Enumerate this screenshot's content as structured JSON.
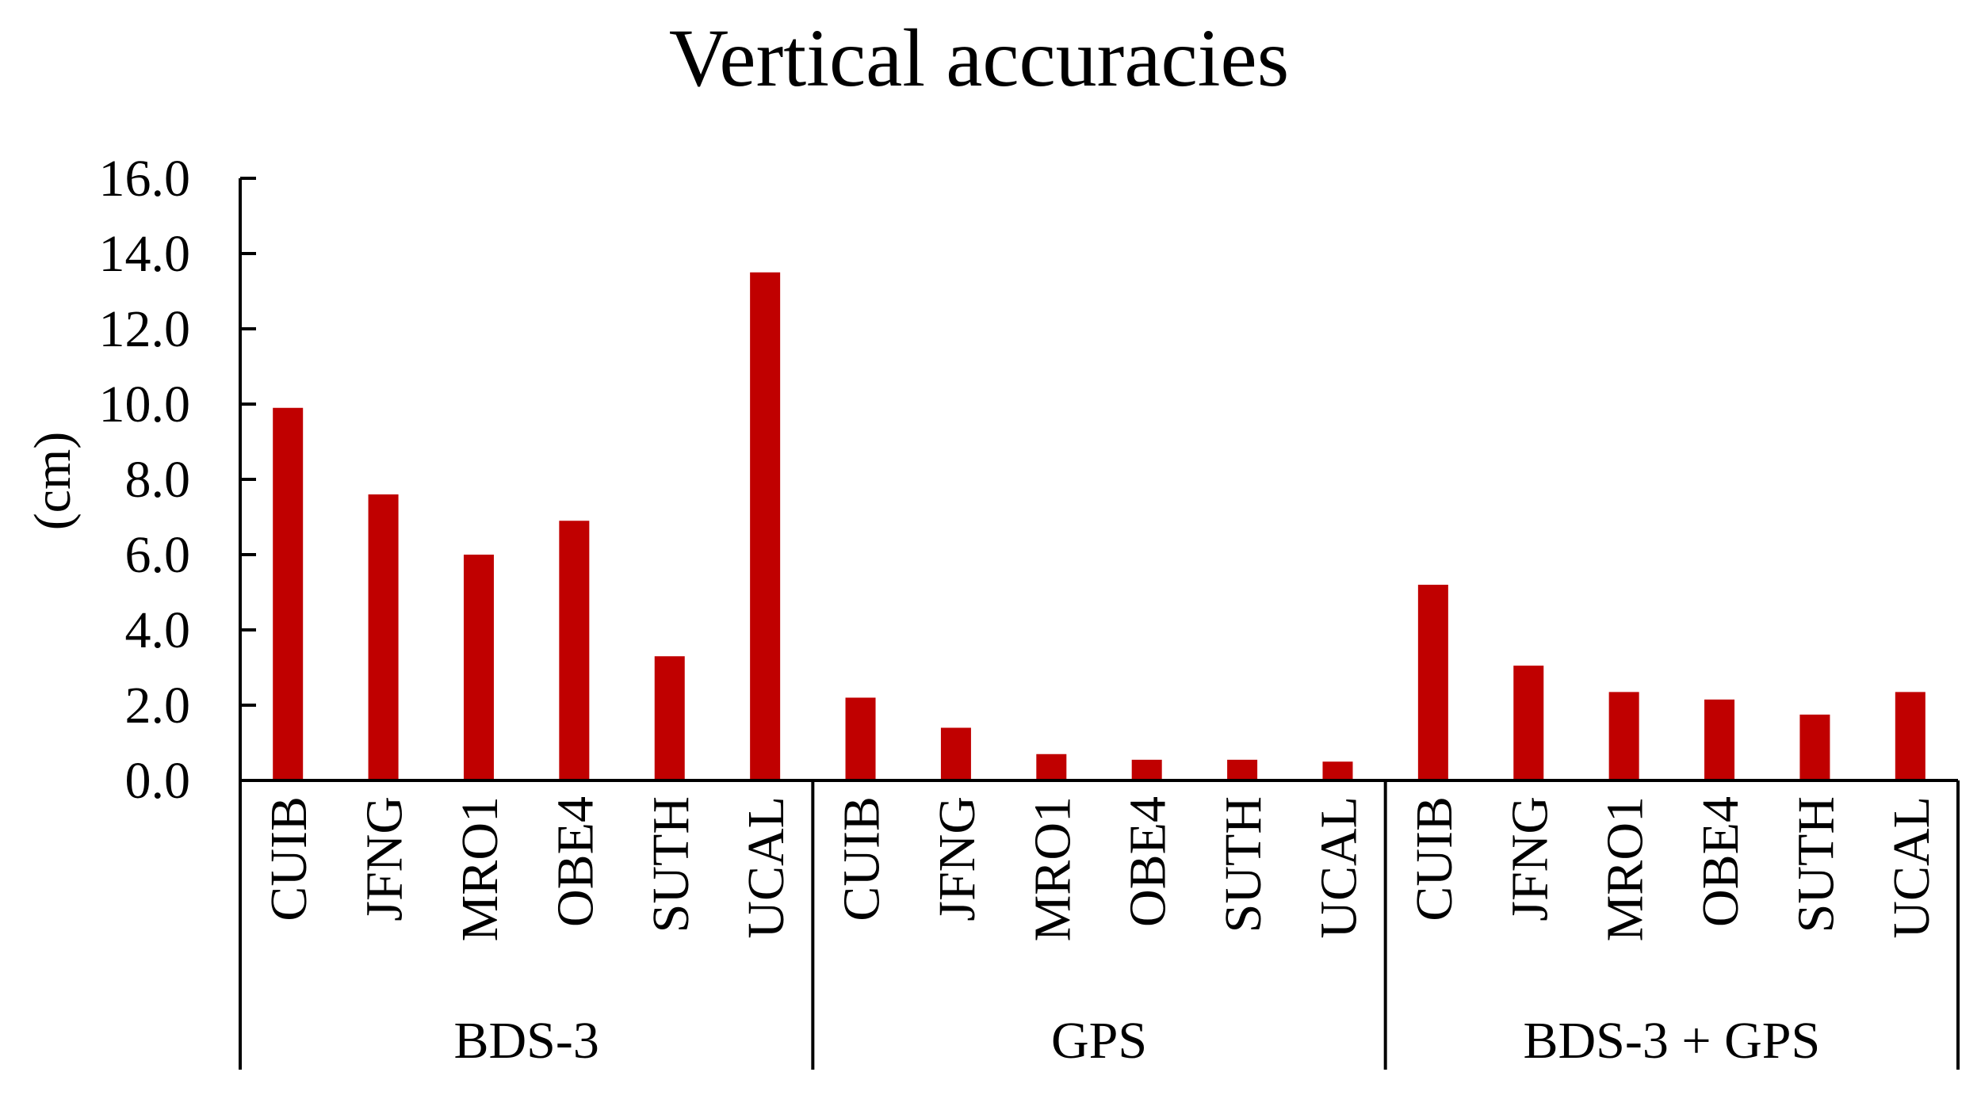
{
  "chart_data": {
    "type": "bar",
    "title": "Vertical accuracies",
    "xlabel": "",
    "ylabel": "(cm)",
    "ylim": [
      0,
      16
    ],
    "yticks": [
      "0.0",
      "2.0",
      "4.0",
      "6.0",
      "8.0",
      "10.0",
      "12.0",
      "14.0",
      "16.0"
    ],
    "grid": false,
    "legend": "none",
    "bar_color": "#c00000",
    "groups": [
      {
        "name": "BDS-3",
        "categories": [
          "CUIB",
          "JFNG",
          "MRO1",
          "OBE4",
          "SUTH",
          "UCAL"
        ],
        "values": [
          9.9,
          7.6,
          6.0,
          6.9,
          3.3,
          13.5
        ]
      },
      {
        "name": "GPS",
        "categories": [
          "CUIB",
          "JFNG",
          "MRO1",
          "OBE4",
          "SUTH",
          "UCAL"
        ],
        "values": [
          2.2,
          1.4,
          0.7,
          0.55,
          0.55,
          0.5
        ]
      },
      {
        "name": "BDS-3 + GPS",
        "categories": [
          "CUIB",
          "JFNG",
          "MRO1",
          "OBE4",
          "SUTH",
          "UCAL"
        ],
        "values": [
          5.2,
          3.05,
          2.35,
          2.15,
          1.75,
          2.35
        ]
      }
    ]
  }
}
